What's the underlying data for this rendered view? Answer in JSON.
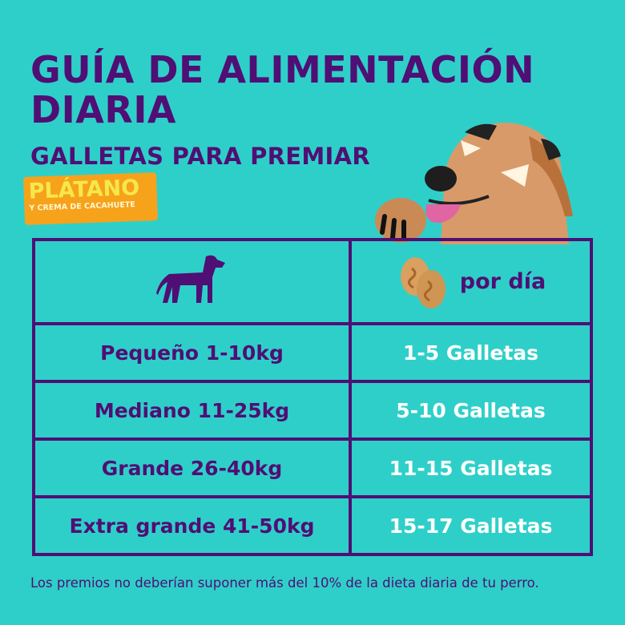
{
  "header": {
    "title_line1": "GUÍA DE ALIMENTACIÓN",
    "title_line2": "DIARIA",
    "subtitle": "GALLETAS PARA PREMIAR"
  },
  "badge": {
    "flavor": "PLÁTANO",
    "flavor_sub": "Y CREMA DE CACAHUETE"
  },
  "table": {
    "header_right": "por día",
    "rows": [
      {
        "size": "Pequeño 1-10kg",
        "amount": "1-5 Galletas"
      },
      {
        "size": "Mediano 11-25kg",
        "amount": "5-10 Galletas"
      },
      {
        "size": "Grande 26-40kg",
        "amount": "11-15 Galletas"
      },
      {
        "size": "Extra grande 41-50kg",
        "amount": "15-17 Galletas"
      }
    ]
  },
  "footer": "Los premios no deberían suponer más del 10% de la dieta diaria de tu perro.",
  "colors": {
    "background": "#2fcfc9",
    "purple": "#4f0f74",
    "orange": "#f7a21b",
    "yellow": "#f5e84a"
  }
}
